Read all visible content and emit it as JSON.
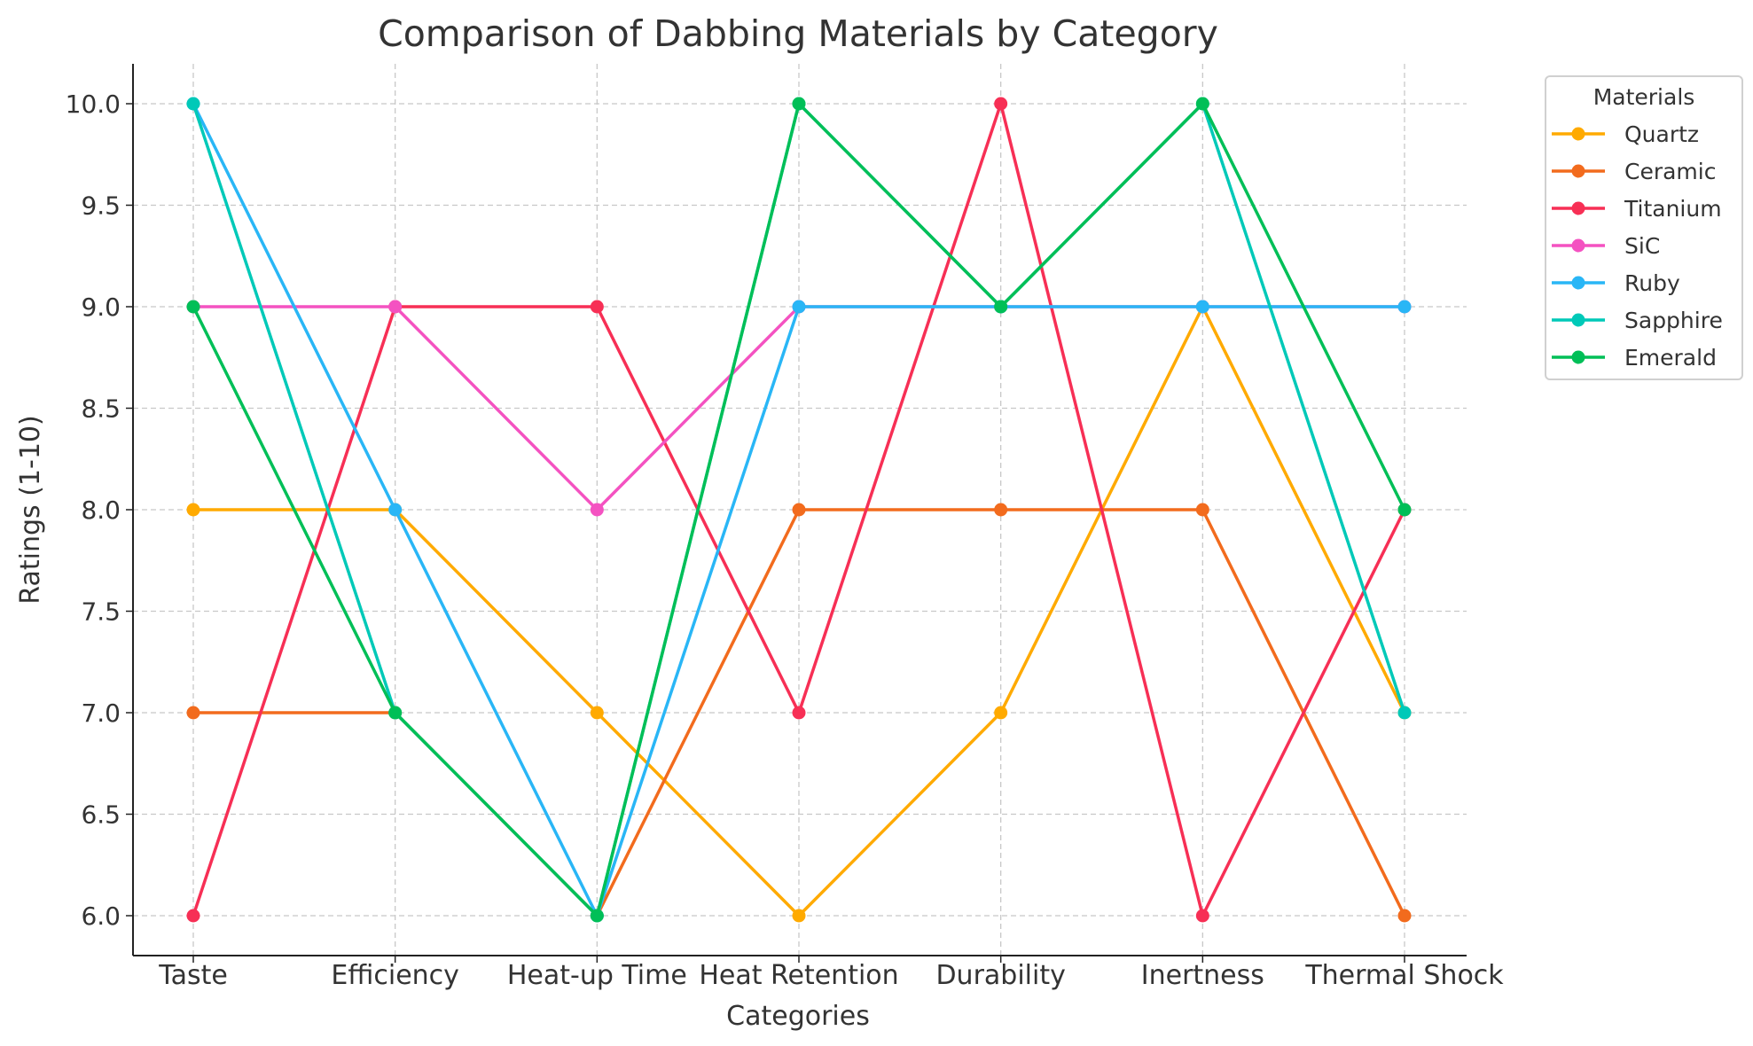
{
  "chart_data": {
    "type": "line",
    "title": "Comparison of Dabbing Materials by Category",
    "xlabel": "Categories",
    "ylabel": "Ratings (1-10)",
    "categories": [
      "Taste",
      "Efficiency",
      "Heat-up Time",
      "Heat Retention",
      "Durability",
      "Inertness",
      "Thermal Shock"
    ],
    "ylim": [
      5.8,
      10.2
    ],
    "yticks": [
      "6.0",
      "6.5",
      "7.0",
      "7.5",
      "8.0",
      "8.5",
      "9.0",
      "9.5",
      "10.0"
    ],
    "grid": true,
    "legend": {
      "title": "Materials",
      "placement": "outside-top-right"
    },
    "series": [
      {
        "name": "Quartz",
        "color": "#FFAA00",
        "values": [
          8,
          8,
          7,
          6,
          7,
          9,
          7
        ]
      },
      {
        "name": "Ceramic",
        "color": "#F26B1D",
        "values": [
          7,
          7,
          6,
          8,
          8,
          8,
          6
        ]
      },
      {
        "name": "Titanium",
        "color": "#F72F55",
        "values": [
          6,
          9,
          9,
          7,
          10,
          6,
          8
        ]
      },
      {
        "name": "SiC",
        "color": "#F452C1",
        "values": [
          9,
          9,
          8,
          9,
          9,
          9,
          9
        ]
      },
      {
        "name": "Ruby",
        "color": "#29B6F6",
        "values": [
          10,
          8,
          6,
          9,
          9,
          9,
          9
        ]
      },
      {
        "name": "Sapphire",
        "color": "#00C9B8",
        "values": [
          10,
          7,
          6,
          10,
          9,
          10,
          7
        ]
      },
      {
        "name": "Emerald",
        "color": "#00BF57",
        "values": [
          9,
          7,
          6,
          10,
          9,
          10,
          8
        ]
      }
    ]
  }
}
